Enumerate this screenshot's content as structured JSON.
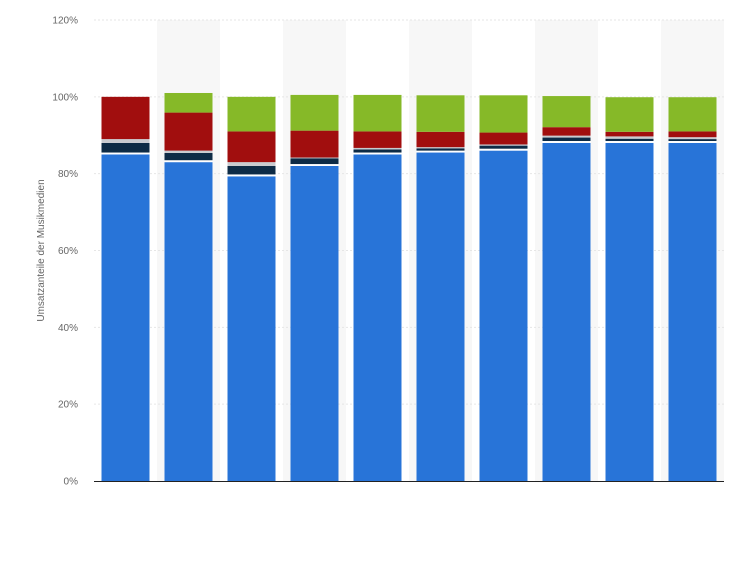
{
  "chart_data": {
    "type": "bar",
    "stacked": true,
    "categories": [
      "",
      "",
      "",
      "",
      "",
      "",
      "",
      "",
      "",
      ""
    ],
    "ylabel": "Umsatzanteile der Musikmedien",
    "ylim": [
      0,
      120
    ],
    "yticks": [
      0,
      20,
      40,
      60,
      80,
      100,
      120
    ],
    "ytick_labels": [
      "0%",
      "20%",
      "40%",
      "60%",
      "80%",
      "100%",
      "120%"
    ],
    "grid": true,
    "legend": "none",
    "series": [
      {
        "color": "#2874d8",
        "values": [
          85,
          83,
          79.3,
          82,
          85,
          85.5,
          86,
          88,
          88,
          88
        ]
      },
      {
        "color": "#ffffff",
        "values": [
          0.5,
          0.5,
          0.5,
          0.5,
          0.5,
          0.5,
          0.5,
          0.5,
          0.5,
          0.5
        ]
      },
      {
        "color": "#0d2b46",
        "values": [
          2.5,
          1.9,
          2.2,
          1.5,
          0.8,
          0.6,
          0.8,
          0.9,
          0.6,
          0.5
        ]
      },
      {
        "color": "#c9cbd0",
        "values": [
          1,
          0.6,
          1,
          0.2,
          0.4,
          0.3,
          0.3,
          0.5,
          0.6,
          0.5
        ]
      },
      {
        "color": "#a10e0e",
        "values": [
          11,
          9.9,
          8,
          7,
          4.3,
          4,
          3.1,
          2.2,
          1.2,
          1.5
        ]
      },
      {
        "color": "#86b928",
        "values": [
          0,
          5.1,
          9,
          9.3,
          9.5,
          9.5,
          9.7,
          8.1,
          9,
          8.9
        ]
      }
    ],
    "colors": {
      "grid": "#e6e6e6",
      "axis": "#222222",
      "column_band": "#f7f7f7"
    }
  }
}
